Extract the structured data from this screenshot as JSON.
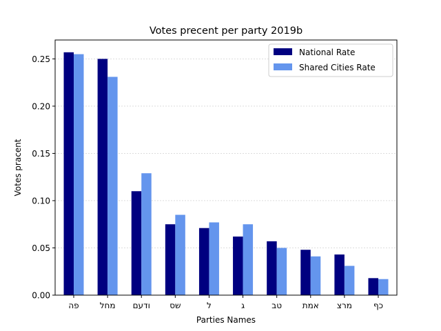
{
  "chart_data": {
    "type": "bar",
    "title": "Votes precent per party 2019b",
    "xlabel": "Parties Names",
    "ylabel": "Votes pracent",
    "categories": [
      "פה",
      "מחל",
      "ודעם",
      "שס",
      "ל",
      "ג",
      "טב",
      "אמת",
      "מרצ",
      "כף"
    ],
    "series": [
      {
        "name": "National Rate",
        "color": "#000080",
        "values": [
          0.257,
          0.25,
          0.11,
          0.075,
          0.071,
          0.062,
          0.057,
          0.048,
          0.043,
          0.018
        ]
      },
      {
        "name": "Shared Cities Rate",
        "color": "#6495ED",
        "values": [
          0.255,
          0.231,
          0.129,
          0.085,
          0.077,
          0.075,
          0.05,
          0.041,
          0.031,
          0.017
        ]
      }
    ],
    "ylim": [
      0,
      0.27
    ],
    "yticks": [
      "0.00",
      "0.05",
      "0.10",
      "0.15",
      "0.20",
      "0.25"
    ],
    "grid": "horizontal dashed",
    "legend": "top-right"
  }
}
